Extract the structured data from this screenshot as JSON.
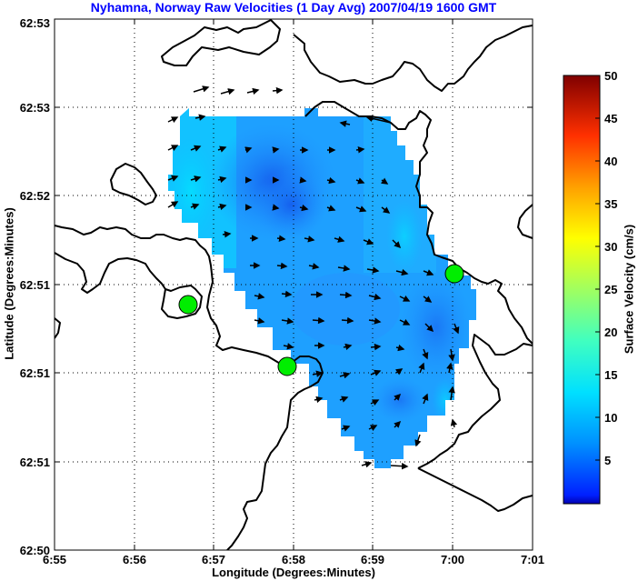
{
  "chart_data": {
    "type": "vector-field",
    "title": "Nyhamna, Norway Raw Velocities (1 Day Avg) 2007/04/19 1600 GMT",
    "xlabel": "Longitude (Degrees:Minutes)",
    "ylabel": "Latitude (Degrees:Minutes)",
    "x_ticks": [
      "6:55",
      "6:56",
      "6:57",
      "6:58",
      "6:59",
      "7:00",
      "7:01"
    ],
    "y_ticks": [
      "62:50",
      "62:51",
      "62:51",
      "62:51",
      "62:52",
      "62:53",
      "62:53"
    ],
    "grid": true,
    "colorbar": {
      "label": "Surface Velocity (cm/s)",
      "min": 0,
      "max": 50,
      "ticks": [
        "5",
        "10",
        "15",
        "20",
        "25",
        "30",
        "35",
        "40",
        "45",
        "50"
      ],
      "colormap": "jet"
    },
    "velocity_range_cm_s": [
      3,
      12
    ],
    "stations": [
      "station-west",
      "station-south",
      "station-east"
    ]
  }
}
